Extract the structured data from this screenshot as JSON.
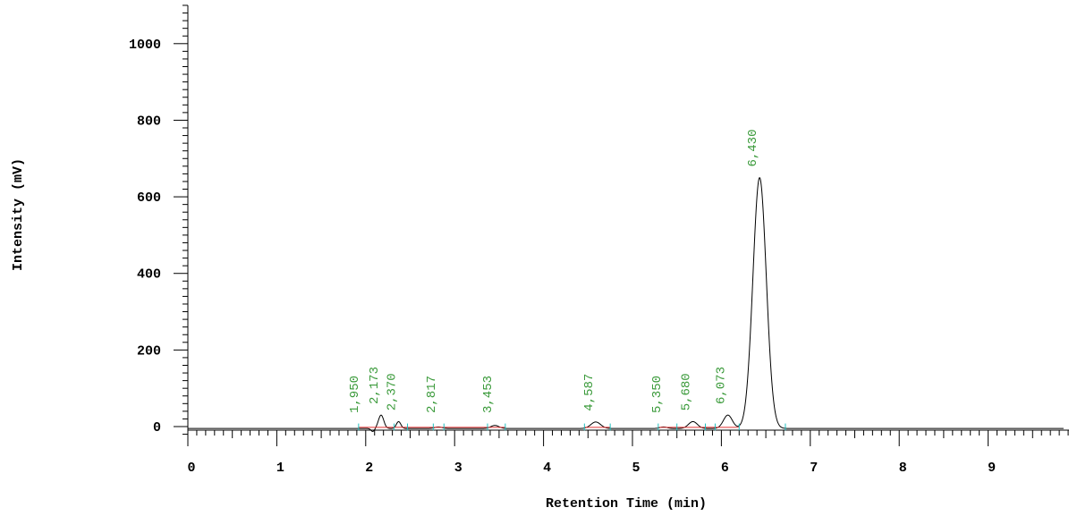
{
  "chart_data": {
    "type": "line",
    "title": "",
    "xlabel": "Retention Time (min)",
    "ylabel": "Intensity (mV)",
    "xlim": [
      0,
      9.85
    ],
    "ylim": [
      -10,
      1100
    ],
    "x_ticks": [
      0,
      1,
      2,
      3,
      4,
      5,
      6,
      7,
      8,
      9
    ],
    "y_ticks": [
      0,
      200,
      400,
      600,
      800,
      1000
    ],
    "grid": false,
    "colors": {
      "trace": "#000000",
      "baseline": "#e03030",
      "peak_marker": "#20c0c0",
      "peak_label": "#3a9a3a"
    },
    "series": [
      {
        "peaks": [
          {
            "rt": 1.95,
            "height": 0
          },
          {
            "rt": 2.173,
            "height": 35
          },
          {
            "rt": 2.37,
            "height": 18
          },
          {
            "rt": 2.817,
            "height": 4
          },
          {
            "rt": 3.453,
            "height": 8
          },
          {
            "rt": 4.587,
            "height": 17
          },
          {
            "rt": 5.35,
            "height": 4
          },
          {
            "rt": 5.68,
            "height": 18
          },
          {
            "rt": 6.073,
            "height": 35
          },
          {
            "rt": 6.43,
            "height": 655
          }
        ]
      }
    ],
    "peak_labels": [
      "1,950",
      "2,173",
      "2,370",
      "2,817",
      "3,453",
      "4,587",
      "5,350",
      "5,680",
      "6,073",
      "6,430"
    ],
    "integration_marks": [
      1.92,
      2.32,
      2.47,
      2.76,
      2.88,
      3.37,
      3.57,
      4.46,
      4.75,
      5.29,
      5.5,
      5.82,
      5.93,
      6.2,
      6.72
    ]
  }
}
